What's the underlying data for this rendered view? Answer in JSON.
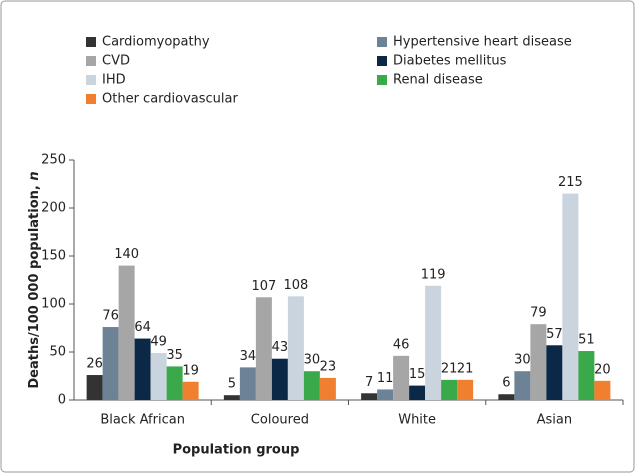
{
  "chart_data": {
    "type": "bar",
    "categories": [
      "Black African",
      "Coloured",
      "White",
      "Asian"
    ],
    "series": [
      {
        "name": "Cardiomyopathy",
        "color": "#333333",
        "values": [
          26,
          5,
          7,
          6
        ]
      },
      {
        "name": "Hypertensive heart disease",
        "color": "#6e8296",
        "values": [
          76,
          34,
          11,
          30
        ]
      },
      {
        "name": "CVD",
        "color": "#a6a6a6",
        "values": [
          140,
          107,
          46,
          79
        ]
      },
      {
        "name": "Diabetes mellitus",
        "color": "#0b2847",
        "values": [
          64,
          43,
          15,
          57
        ]
      },
      {
        "name": "IHD",
        "color": "#c9d4df",
        "values": [
          49,
          108,
          119,
          215
        ]
      },
      {
        "name": "Renal disease",
        "color": "#3aa94a",
        "values": [
          35,
          30,
          21,
          51
        ]
      },
      {
        "name": "Other cardiovascular",
        "color": "#f07f2f",
        "values": [
          19,
          23,
          21,
          20
        ]
      }
    ],
    "x_label": "Population group",
    "y_label": "Deaths/100 000 population, ",
    "y_label_italic": "n",
    "ylim": [
      0,
      250
    ],
    "yticks": [
      0,
      50,
      100,
      150,
      200,
      250
    ]
  }
}
